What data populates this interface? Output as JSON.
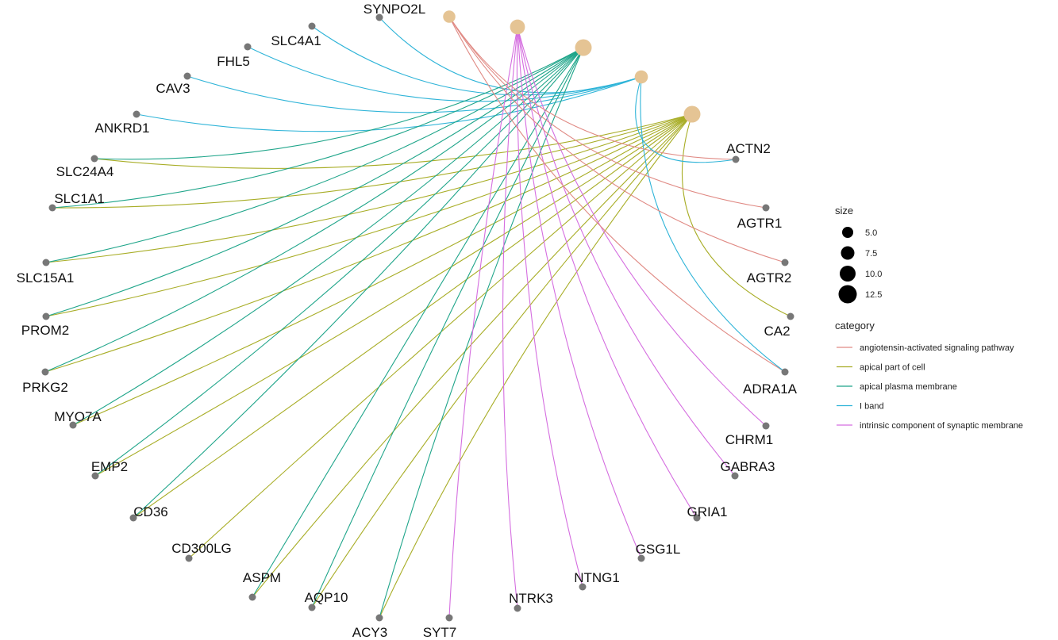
{
  "colors": {
    "category_node": "#e5c494",
    "gene_node": "#777777",
    "angiotensin": "#e08a84",
    "apical_part": "#a8ad26",
    "apical_membrane": "#1fa58a",
    "i_band": "#2fb4d8",
    "synaptic": "#d56ee0"
  },
  "legend": {
    "size_title": "size",
    "size_values": [
      "5.0",
      "7.5",
      "10.0",
      "12.5"
    ],
    "category_title": "category",
    "categories": [
      {
        "key": "angiotensin",
        "label": "angiotensin-activated signaling pathway"
      },
      {
        "key": "apical_part",
        "label": "apical part of cell"
      },
      {
        "key": "apical_membrane",
        "label": "apical plasma membrane"
      },
      {
        "key": "i_band",
        "label": "I band"
      },
      {
        "key": "synaptic",
        "label": "intrinsic component of synaptic membrane"
      }
    ]
  },
  "network": {
    "category_nodes": [
      {
        "key": "angiotensin",
        "size": 5
      },
      {
        "key": "synaptic",
        "size": 8
      },
      {
        "key": "apical_membrane",
        "size": 10
      },
      {
        "key": "i_band",
        "size": 6
      },
      {
        "key": "apical_part",
        "size": 10
      }
    ],
    "genes": [
      {
        "name": "SYNPO2L",
        "categories": [
          "i_band"
        ]
      },
      {
        "name": "SLC4A1",
        "categories": [
          "i_band"
        ]
      },
      {
        "name": "FHL5",
        "categories": [
          "i_band"
        ]
      },
      {
        "name": "CAV3",
        "categories": [
          "i_band"
        ]
      },
      {
        "name": "ANKRD1",
        "categories": [
          "i_band"
        ]
      },
      {
        "name": "SLC24A4",
        "categories": [
          "apical_part",
          "apical_membrane"
        ]
      },
      {
        "name": "SLC1A1",
        "categories": [
          "apical_part",
          "apical_membrane"
        ]
      },
      {
        "name": "SLC15A1",
        "categories": [
          "apical_part",
          "apical_membrane"
        ]
      },
      {
        "name": "PROM2",
        "categories": [
          "apical_part",
          "apical_membrane"
        ]
      },
      {
        "name": "PRKG2",
        "categories": [
          "apical_part",
          "apical_membrane"
        ]
      },
      {
        "name": "MYO7A",
        "categories": [
          "apical_part",
          "apical_membrane"
        ]
      },
      {
        "name": "EMP2",
        "categories": [
          "apical_part",
          "apical_membrane"
        ]
      },
      {
        "name": "CD36",
        "categories": [
          "apical_part",
          "apical_membrane"
        ]
      },
      {
        "name": "CD300LG",
        "categories": [
          "apical_part"
        ]
      },
      {
        "name": "ASPM",
        "categories": [
          "apical_part",
          "apical_membrane"
        ]
      },
      {
        "name": "AQP10",
        "categories": [
          "apical_part",
          "apical_membrane"
        ]
      },
      {
        "name": "ACY3",
        "categories": [
          "apical_part",
          "apical_membrane"
        ]
      },
      {
        "name": "SYT7",
        "categories": [
          "synaptic"
        ]
      },
      {
        "name": "NTRK3",
        "categories": [
          "synaptic"
        ]
      },
      {
        "name": "NTNG1",
        "categories": [
          "synaptic"
        ]
      },
      {
        "name": "GSG1L",
        "categories": [
          "synaptic"
        ]
      },
      {
        "name": "GRIA1",
        "categories": [
          "synaptic"
        ]
      },
      {
        "name": "GABRA3",
        "categories": [
          "synaptic"
        ]
      },
      {
        "name": "CHRM1",
        "categories": [
          "synaptic"
        ]
      },
      {
        "name": "ADRA1A",
        "categories": [
          "angiotensin",
          "i_band"
        ]
      },
      {
        "name": "CA2",
        "categories": [
          "apical_part"
        ]
      },
      {
        "name": "AGTR2",
        "categories": [
          "angiotensin"
        ]
      },
      {
        "name": "AGTR1",
        "categories": [
          "angiotensin"
        ]
      },
      {
        "name": "ACTN2",
        "categories": [
          "angiotensin",
          "i_band"
        ]
      }
    ]
  }
}
